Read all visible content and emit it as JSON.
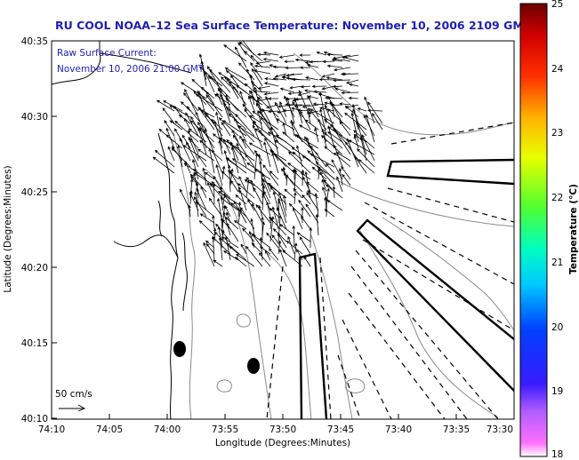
{
  "title": "RU COOL  NOAA–12  Sea Surface Temperature:  November 10, 2006 2109 GMT",
  "overlay": {
    "line1": "Raw Surface Current:",
    "line2": "November 10, 2006 21:00 GMT"
  },
  "scale_label": "50 cm/s",
  "x_axis": {
    "label": "Longitude (Degrees:Minutes)",
    "ticks": [
      "74:10",
      "74:05",
      "74:00",
      "73:55",
      "73:50",
      "73:45",
      "73:40",
      "73:35",
      "73:30"
    ]
  },
  "y_axis": {
    "label": "Latitude (Degrees:Minutes)",
    "ticks": [
      "40:35",
      "40:30",
      "40:25",
      "40:20",
      "40:15",
      "40:10"
    ]
  },
  "colorbar": {
    "label": "Temperature (°C)",
    "ticks": [
      "25",
      "24",
      "23",
      "22",
      "21",
      "20",
      "19",
      "18"
    ],
    "min": 18,
    "max": 25,
    "colors": [
      "#ff70ff",
      "#8a2be2",
      "#0000ff",
      "#00c8ff",
      "#00ff7f",
      "#b0ff00",
      "#ffd000",
      "#ff4000",
      "#d00000",
      "#6a0000"
    ]
  },
  "map_colors": {
    "coast": "#000000",
    "contour": "#8a8a8a",
    "arrow": "#000000"
  }
}
